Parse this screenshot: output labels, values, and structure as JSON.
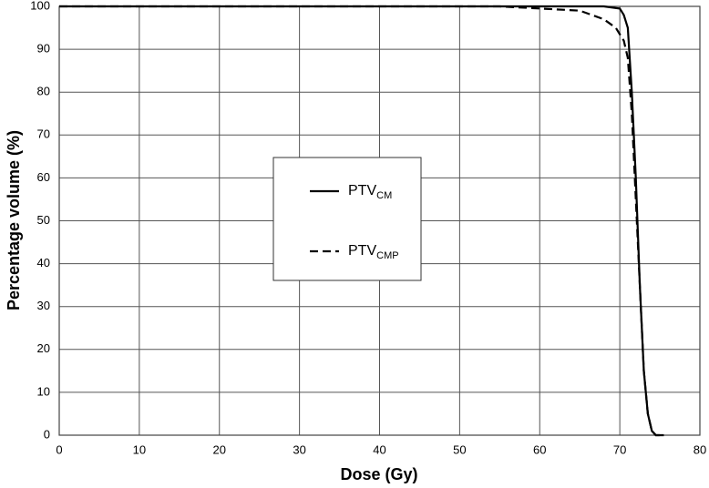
{
  "chart_data": {
    "type": "line",
    "xlabel": "Dose (Gy)",
    "ylabel": "Percentage volume (%)",
    "xlim": [
      0,
      80
    ],
    "xticks": [
      0,
      10,
      20,
      30,
      40,
      50,
      60,
      70,
      80
    ],
    "ylim": [
      0,
      100
    ],
    "yticks": [
      0,
      10,
      20,
      30,
      40,
      50,
      60,
      70,
      80,
      90,
      100
    ],
    "grid": true,
    "series": [
      {
        "name": "PTVCM",
        "color": "#000000",
        "dash": false,
        "x": [
          0,
          60,
          68,
          70,
          70.5,
          71,
          71.5,
          72,
          72.5,
          73,
          73.5,
          74,
          74.5,
          75.5
        ],
        "values": [
          100,
          100,
          100,
          99.5,
          98,
          95,
          80,
          60,
          35,
          15,
          5,
          1,
          0,
          0
        ]
      },
      {
        "name": "PTVCMP",
        "color": "#000000",
        "dash": true,
        "x": [
          0,
          55,
          60,
          65,
          68,
          69.5,
          70.5,
          71,
          71.5,
          72,
          72.5,
          73,
          73.5,
          74,
          74.5,
          75
        ],
        "values": [
          100,
          100,
          99.5,
          99,
          97,
          95,
          92,
          88,
          75,
          55,
          35,
          15,
          5,
          1,
          0,
          0
        ]
      }
    ]
  }
}
